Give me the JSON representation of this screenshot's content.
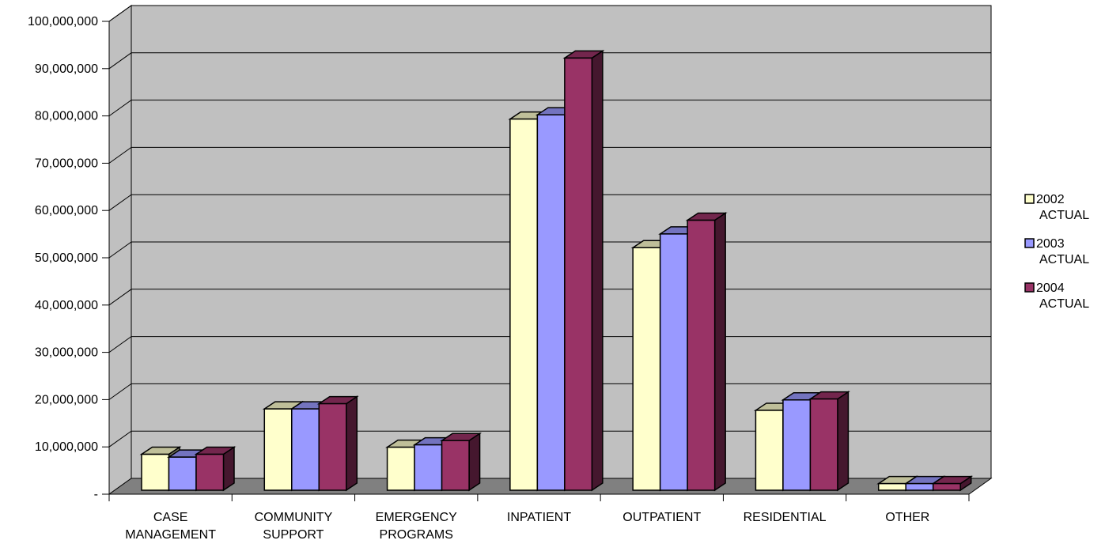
{
  "chart_data": {
    "type": "bar",
    "style": "3d-clustered-column",
    "categories": [
      [
        "CASE",
        "MANAGEMENT"
      ],
      [
        "COMMUNITY",
        "SUPPORT"
      ],
      [
        "EMERGENCY",
        "PROGRAMS"
      ],
      [
        "INPATIENT"
      ],
      [
        "OUTPATIENT"
      ],
      [
        "RESIDENTIAL"
      ],
      [
        "OTHER"
      ]
    ],
    "series": [
      {
        "name": [
          "2002",
          "ACTUAL"
        ],
        "color": "#FFFFCC",
        "values": [
          7600000,
          17200000,
          9100000,
          78500000,
          51300000,
          16900000,
          1400000
        ]
      },
      {
        "name": [
          "2003",
          "ACTUAL"
        ],
        "color": "#9999FF",
        "values": [
          7000000,
          17200000,
          9600000,
          79400000,
          54200000,
          19100000,
          1400000
        ]
      },
      {
        "name": [
          "2004",
          "ACTUAL"
        ],
        "color": "#993366",
        "values": [
          7600000,
          18300000,
          10500000,
          91400000,
          57100000,
          19300000,
          1400000
        ]
      }
    ],
    "yticks": [
      "-",
      "10,000,000",
      "20,000,000",
      "30,000,000",
      "40,000,000",
      "50,000,000",
      "60,000,000",
      "70,000,000",
      "80,000,000",
      "90,000,000",
      "100,000,000"
    ],
    "ylim": [
      0,
      100000000
    ],
    "grid": true,
    "legend_position": "right",
    "wall_color": "#C0C0C0",
    "floor_color": "#808080"
  }
}
